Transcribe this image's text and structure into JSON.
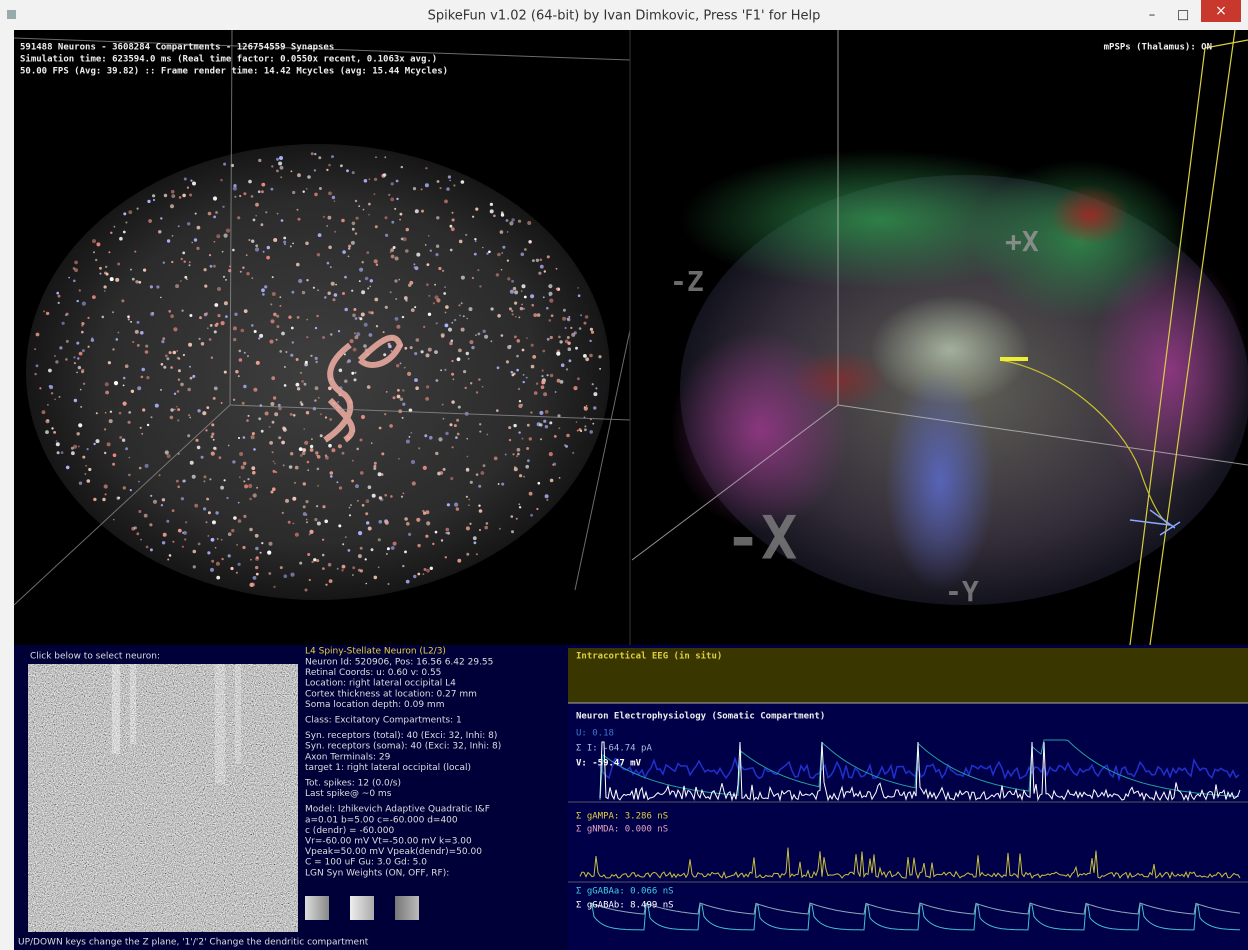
{
  "window": {
    "title": "SpikeFun v1.02 (64-bit) by Ivan Dimkovic, Press 'F1' for Help",
    "controls": [
      "–",
      "□",
      "×"
    ]
  },
  "overlay": {
    "stats": [
      "591488 Neurons - 3608284 Compartments - 126754559 Synapses",
      "Simulation time: 623594.0 ms (Real time factor: 0.0550x recent, 0.1063x avg.)",
      "50.00 FPS (Avg: 39.82) :: Frame render time: 14.42 Mcycles (avg: 15.44 Mcycles)"
    ],
    "mpsps": "mPSPs (Thalamus): ON",
    "axis_labels": [
      "-Z",
      "+X",
      "-X",
      "-Y"
    ]
  },
  "neuron_panel": {
    "prompt": "Click below to select neuron:",
    "info_title": "L4 Spiny-Stellate Neuron (L2/3)",
    "info_blocks": [
      [
        "Neuron Id: 520906,  Pos: 16.56 6.42 29.55",
        "Retinal Coords: u: 0.60 v: 0.55",
        "Location: right lateral occipital L4",
        "Cortex thickness at location: 0.27 mm",
        "Soma location depth: 0.09 mm"
      ],
      [
        "Class: Excitatory    Compartments: 1"
      ],
      [
        "Syn. receptors (total): 40 (Exci: 32, Inhi: 8)",
        "Syn. receptors (soma): 40 (Exci: 32, Inhi: 8)",
        "Axon Terminals: 29",
        "   target 1: right lateral occipital (local)"
      ],
      [
        "Tot. spikes: 12 (0.0/s)",
        "Last spike@ ~0 ms"
      ],
      [
        "Model: Izhikevich Adaptive Quadratic I&F",
        "a=0.01  b=5.00  c=-60.000  d=400",
        "c (dendr) = -60.000",
        "Vr=-60.00 mV  Vt=-50.00 mV  k=3.00",
        "Vpeak=50.00 mV  Vpeak(dendr)=50.00",
        "C = 100 uF  Gu: 3.0  Gd: 5.0",
        "LGN Syn Weights (ON, OFF, RF):"
      ]
    ],
    "footer": "UP/DOWN keys change the Z plane, '1'/'2' Change the dendritic compartment"
  },
  "electro_panel": {
    "eeg_title": "Intracortical EEG (in situ)",
    "title": "Neuron Electrophysiology (Somatic Compartment)",
    "labels": [
      "U: 0.18",
      "Σ I: -64.74 pA",
      "V: -59.47 mV",
      "Σ gAMPA: 3.286 nS",
      "Σ gNMDA: 0.000 nS",
      "Σ gGABAa: 0.066 nS",
      "Σ gGABAb: 8.499 nS"
    ]
  }
}
